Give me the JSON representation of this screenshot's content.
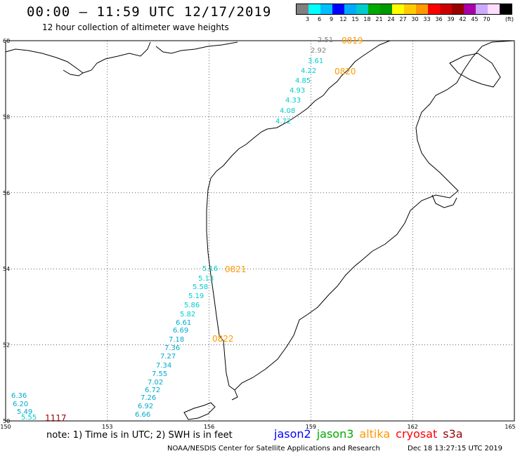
{
  "header": {
    "title": "00:00 – 11:59 UTC 12/17/2019",
    "subtitle": "12 hour collection of altimeter wave heights"
  },
  "colorbar": {
    "colors": [
      "#808080",
      "#00ffff",
      "#00bfff",
      "#0000ff",
      "#00aaff",
      "#00cccc",
      "#00aa00",
      "#009900",
      "#ffff00",
      "#ffcc00",
      "#ff9900",
      "#ff0000",
      "#cc0000",
      "#990000",
      "#aa00aa",
      "#ccaaff",
      "#ffddff",
      "#000000"
    ],
    "tick_labels": [
      "3",
      "6",
      "9",
      "12",
      "15",
      "18",
      "21",
      "24",
      "27",
      "30",
      "33",
      "36",
      "39",
      "42",
      "45",
      "70"
    ],
    "unit": "(ft)"
  },
  "map": {
    "lon_labels": [
      "150",
      "153",
      "156",
      "159",
      "162",
      "165"
    ],
    "lat_labels": [
      "60",
      "58",
      "56",
      "54",
      "52",
      "50"
    ],
    "lon_range": [
      150,
      165
    ],
    "lat_range": [
      50,
      60
    ],
    "swh_points": [
      {
        "v": "2.51",
        "c": "#808080"
      },
      {
        "v": "2.92",
        "c": "#808080"
      },
      {
        "v": "3.61",
        "c": "#00cccc"
      },
      {
        "v": "4.22",
        "c": "#00cccc"
      },
      {
        "v": "4.85",
        "c": "#00cccc"
      },
      {
        "v": "4.93",
        "c": "#00cccc"
      },
      {
        "v": "4.33",
        "c": "#00cccc"
      },
      {
        "v": "4.08",
        "c": "#00cccc"
      },
      {
        "v": "4.72",
        "c": "#00cccc"
      },
      {
        "v": "5.16",
        "c": "#00cccc"
      },
      {
        "v": "5.13",
        "c": "#00cccc"
      },
      {
        "v": "5.58",
        "c": "#00cccc"
      },
      {
        "v": "5.19",
        "c": "#00cccc"
      },
      {
        "v": "5.86",
        "c": "#00cccc"
      },
      {
        "v": "5.82",
        "c": "#00cccc"
      },
      {
        "v": "6.61",
        "c": "#00aacc"
      },
      {
        "v": "6.69",
        "c": "#00aacc"
      },
      {
        "v": "7.18",
        "c": "#00aacc"
      },
      {
        "v": "7.36",
        "c": "#00aacc"
      },
      {
        "v": "7.27",
        "c": "#00aacc"
      },
      {
        "v": "7.34",
        "c": "#00aacc"
      },
      {
        "v": "7.55",
        "c": "#00aacc"
      },
      {
        "v": "7.02",
        "c": "#00aacc"
      },
      {
        "v": "6.72",
        "c": "#00aacc"
      },
      {
        "v": "7.26",
        "c": "#00aacc"
      },
      {
        "v": "6.92",
        "c": "#00aacc"
      },
      {
        "v": "6.66",
        "c": "#00aacc"
      },
      {
        "v": "6.36",
        "c": "#00aacc"
      },
      {
        "v": "6.20",
        "c": "#00aacc"
      },
      {
        "v": "5.49",
        "c": "#00aacc"
      },
      {
        "v": "5.55",
        "c": "#00cccc"
      }
    ],
    "time_labels": [
      {
        "t": "0819",
        "c": "#ff9900"
      },
      {
        "t": "0820",
        "c": "#ff9900"
      },
      {
        "t": "0821",
        "c": "#ff9900"
      },
      {
        "t": "0822",
        "c": "#ff9900"
      },
      {
        "t": "1117",
        "c": "#990000"
      }
    ]
  },
  "footer": {
    "note": "note: 1) Time is in UTC; 2) SWH is in feet",
    "legend": [
      {
        "name": "jason2",
        "color": "#0000ff"
      },
      {
        "name": "jason3",
        "color": "#00aa00"
      },
      {
        "name": "altika",
        "color": "#ff9900"
      },
      {
        "name": "cryosat",
        "color": "#ff0000"
      },
      {
        "name": "s3a",
        "color": "#990000"
      }
    ],
    "credit": "NOAA/NESDIS Center for Satellite Applications and Research",
    "timestamp": "Dec 18 13:27:15 UTC 2019"
  }
}
